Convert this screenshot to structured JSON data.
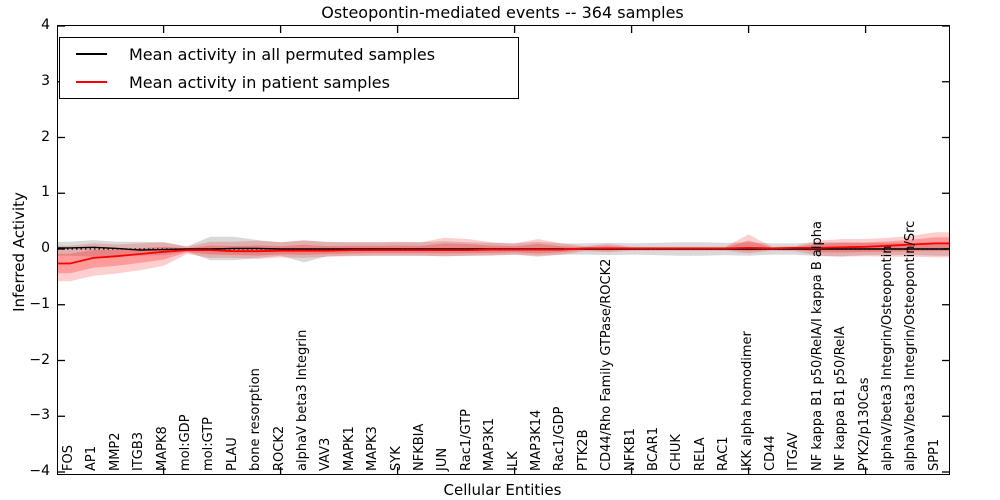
{
  "title": "Osteopontin-mediated events -- 364 samples",
  "legend": {
    "items": [
      {
        "label": "Mean activity in all permuted samples",
        "color": "#000000"
      },
      {
        "label": "Mean activity in patient samples",
        "color": "#ff0000"
      }
    ]
  },
  "axes": {
    "ylabel": "Inferred Activity",
    "xlabel": "Cellular Entities",
    "yticks": [
      {
        "label": "4",
        "value": 4
      },
      {
        "label": "3",
        "value": 3
      },
      {
        "label": "2",
        "value": 2
      },
      {
        "label": "1",
        "value": 1
      },
      {
        "label": "0",
        "value": 0
      },
      {
        "label": "−1",
        "value": -1
      },
      {
        "label": "−2",
        "value": -2
      },
      {
        "label": "−3",
        "value": -3
      },
      {
        "label": "−4",
        "value": -4
      }
    ]
  },
  "chart_data": {
    "type": "line",
    "title": "Osteopontin-mediated events -- 364 samples",
    "xlabel": "Cellular Entities",
    "ylabel": "Inferred Activity",
    "ylim": [
      -4,
      4
    ],
    "grid": false,
    "legend_position": "upper left",
    "zero_line": true,
    "xtick_positions": [
      4,
      9,
      14,
      19,
      24,
      29,
      34
    ],
    "categories": [
      "FOS",
      "AP1",
      "MMP2",
      "ITGB3",
      "MAPK8",
      "mol:GDP",
      "mol:GTP",
      "PLAU",
      "bone resorption",
      "ROCK2",
      "alphaV beta3 Integrin",
      "VAV3",
      "MAPK1",
      "MAPK3",
      "SYK",
      "NFKBIA",
      "JUN",
      "Rac1/GTP",
      "MAP3K1",
      "ILK",
      "MAP3K14",
      "Rac1/GDP",
      "PTK2B",
      "CD44/Rho Family GTPase/ROCK2",
      "NFKB1",
      "BCAR1",
      "CHUK",
      "RELA",
      "RAC1",
      "IKK alpha homodimer",
      "CD44",
      "ITGAV",
      "NF kappa B1 p50/RelA/I kappa B alpha",
      "NF kappa B1 p50/RelA",
      "PYK2/p130Cas",
      "alphaV/beta3 Integrin/Osteopontin",
      "alphaV/beta3 Integrin/Osteopontin/Src",
      "SPP1"
    ],
    "series": [
      {
        "name": "Mean activity in all permuted samples",
        "color": "#000000",
        "line_width": 1.4,
        "band_color": "rgba(0,0,0,0.15)",
        "values": [
          0.02,
          0.03,
          0.01,
          -0.02,
          -0.01,
          0.0,
          0.0,
          0.01,
          0.01,
          0.0,
          0.0,
          0.0,
          0.0,
          0.0,
          0.0,
          0.0,
          0.0,
          0.0,
          0.0,
          0.0,
          0.0,
          0.0,
          0.0,
          0.0,
          0.0,
          0.0,
          0.0,
          0.0,
          0.0,
          0.0,
          0.0,
          0.0,
          0.0,
          0.0,
          0.0,
          0.0,
          0.0,
          0.0
        ],
        "band_upper": [
          0.13,
          0.16,
          0.13,
          0.13,
          0.12,
          0.05,
          0.22,
          0.22,
          0.16,
          0.12,
          0.15,
          0.13,
          0.12,
          0.12,
          0.12,
          0.12,
          0.14,
          0.12,
          0.11,
          0.1,
          0.13,
          0.1,
          0.1,
          0.11,
          0.1,
          0.11,
          0.12,
          0.12,
          0.11,
          0.12,
          0.1,
          0.1,
          0.12,
          0.12,
          0.11,
          0.11,
          0.11,
          0.12
        ],
        "band_lower": [
          -0.12,
          -0.14,
          -0.12,
          -0.12,
          -0.11,
          -0.05,
          -0.2,
          -0.2,
          -0.16,
          -0.12,
          -0.24,
          -0.13,
          -0.12,
          -0.12,
          -0.12,
          -0.12,
          -0.13,
          -0.12,
          -0.11,
          -0.1,
          -0.12,
          -0.1,
          -0.1,
          -0.11,
          -0.1,
          -0.11,
          -0.12,
          -0.12,
          -0.11,
          -0.12,
          -0.1,
          -0.1,
          -0.13,
          -0.13,
          -0.11,
          -0.11,
          -0.11,
          -0.12
        ]
      },
      {
        "name": "Mean activity in patient samples",
        "color": "#ff0000",
        "line_width": 1.8,
        "band_color": "rgba(255,0,0,0.19)",
        "band_inner_color": "rgba(255,0,0,0.25)",
        "values": [
          -0.26,
          -0.16,
          -0.13,
          -0.09,
          -0.05,
          -0.02,
          -0.02,
          -0.04,
          -0.04,
          -0.03,
          -0.03,
          -0.03,
          -0.02,
          -0.02,
          -0.02,
          -0.02,
          -0.02,
          -0.02,
          -0.01,
          -0.01,
          -0.01,
          -0.01,
          0.01,
          0.01,
          0.01,
          0.01,
          0.01,
          0.01,
          0.01,
          0.02,
          0.01,
          0.02,
          0.02,
          0.03,
          0.04,
          0.06,
          0.08,
          0.1
        ],
        "band_upper": [
          0.06,
          0.1,
          0.08,
          0.1,
          0.12,
          0.04,
          0.13,
          0.13,
          0.15,
          0.12,
          0.16,
          0.12,
          0.12,
          0.12,
          0.13,
          0.12,
          0.2,
          0.18,
          0.12,
          0.1,
          0.18,
          0.1,
          0.05,
          0.09,
          0.04,
          0.04,
          0.04,
          0.04,
          0.04,
          0.26,
          0.04,
          0.05,
          0.15,
          0.18,
          0.18,
          0.2,
          0.24,
          0.3
        ],
        "band_lower": [
          -0.58,
          -0.48,
          -0.44,
          -0.38,
          -0.3,
          -0.09,
          -0.16,
          -0.16,
          -0.18,
          -0.15,
          -0.16,
          -0.14,
          -0.13,
          -0.12,
          -0.12,
          -0.12,
          -0.13,
          -0.12,
          -0.12,
          -0.1,
          -0.14,
          -0.1,
          -0.04,
          -0.06,
          -0.03,
          -0.03,
          -0.03,
          -0.03,
          -0.03,
          -0.08,
          -0.03,
          -0.04,
          -0.12,
          -0.14,
          -0.13,
          -0.14,
          -0.14,
          -0.15
        ]
      }
    ]
  }
}
